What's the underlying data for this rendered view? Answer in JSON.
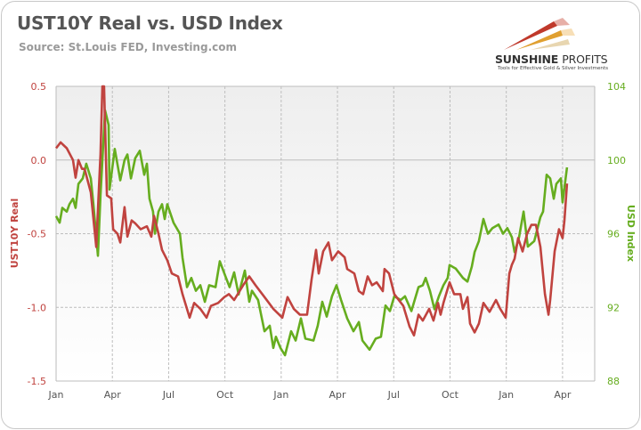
{
  "header": {
    "title": "UST10Y Real vs. USD Index",
    "source": "Source: St.Louis FED,  Investing.com"
  },
  "logo": {
    "brand_bold": "SUNSHINE",
    "brand_thin": "PROFITS",
    "tagline": "Tools for Effective Gold & Silver Investments"
  },
  "colors": {
    "real_yield": "#c0433f",
    "usd_index": "#66ad1f",
    "grid": "#bdbdbd",
    "left_axis_text": "#c0433f",
    "right_axis_text": "#66ad1f",
    "x_axis_text": "#555555"
  },
  "chart_data": {
    "type": "line",
    "title": "UST10Y Real vs. USD Index",
    "xlabel": "",
    "x_unit": "months since first January shown",
    "xlim": [
      0,
      28.5
    ],
    "x_ticks": [
      {
        "m": 0,
        "label": "Jan"
      },
      {
        "m": 3,
        "label": "Apr"
      },
      {
        "m": 6,
        "label": "Jul"
      },
      {
        "m": 9,
        "label": "Oct"
      },
      {
        "m": 12,
        "label": "Jan"
      },
      {
        "m": 15,
        "label": "Apr"
      },
      {
        "m": 18,
        "label": "Jul"
      },
      {
        "m": 21,
        "label": "Oct"
      },
      {
        "m": 24,
        "label": "Jan"
      },
      {
        "m": 27,
        "label": "Apr"
      }
    ],
    "y_left": {
      "label": "UST10Y Real",
      "lim": [
        -1.5,
        0.5
      ],
      "ticks": [
        "0.5",
        "0.0",
        "-0.5",
        "-1.0",
        "-1.5"
      ]
    },
    "y_right": {
      "label": "USD Index",
      "lim": [
        88,
        104
      ],
      "ticks": [
        "104",
        "100",
        "96",
        "92",
        "88"
      ]
    },
    "grid": true,
    "series": [
      {
        "name": "UST10Y Real",
        "axis": "left",
        "points": [
          [
            0,
            0.08
          ],
          [
            0.24,
            0.12
          ],
          [
            0.57,
            0.08
          ],
          [
            0.9,
            0.0
          ],
          [
            1.04,
            -0.12
          ],
          [
            1.19,
            0.0
          ],
          [
            1.38,
            -0.06
          ],
          [
            1.52,
            -0.06
          ],
          [
            1.85,
            -0.22
          ],
          [
            2.14,
            -0.59
          ],
          [
            2.33,
            -0.06
          ],
          [
            2.37,
            0.04
          ],
          [
            2.47,
            0.5
          ],
          [
            2.56,
            0.5
          ],
          [
            2.71,
            -0.24
          ],
          [
            2.94,
            -0.26
          ],
          [
            3.04,
            -0.47
          ],
          [
            3.27,
            -0.5
          ],
          [
            3.42,
            -0.56
          ],
          [
            3.65,
            -0.32
          ],
          [
            3.8,
            -0.52
          ],
          [
            4.03,
            -0.41
          ],
          [
            4.22,
            -0.43
          ],
          [
            4.51,
            -0.47
          ],
          [
            4.84,
            -0.45
          ],
          [
            5.08,
            -0.52
          ],
          [
            5.22,
            -0.38
          ],
          [
            5.46,
            -0.5
          ],
          [
            5.65,
            -0.61
          ],
          [
            5.93,
            -0.68
          ],
          [
            6.17,
            -0.77
          ],
          [
            6.5,
            -0.79
          ],
          [
            6.74,
            -0.91
          ],
          [
            7.12,
            -1.07
          ],
          [
            7.36,
            -0.97
          ],
          [
            7.69,
            -1.01
          ],
          [
            8.02,
            -1.07
          ],
          [
            8.26,
            -0.99
          ],
          [
            8.64,
            -0.97
          ],
          [
            8.97,
            -0.93
          ],
          [
            9.21,
            -0.91
          ],
          [
            9.49,
            -0.95
          ],
          [
            9.97,
            -0.85
          ],
          [
            10.3,
            -0.79
          ],
          [
            10.63,
            -0.85
          ],
          [
            11.11,
            -0.93
          ],
          [
            11.58,
            -1.01
          ],
          [
            12.06,
            -1.07
          ],
          [
            12.34,
            -0.93
          ],
          [
            12.67,
            -1.01
          ],
          [
            13.0,
            -1.05
          ],
          [
            13.38,
            -1.05
          ],
          [
            13.62,
            -0.81
          ],
          [
            13.86,
            -0.61
          ],
          [
            14.0,
            -0.77
          ],
          [
            14.24,
            -0.62
          ],
          [
            14.52,
            -0.56
          ],
          [
            14.71,
            -0.68
          ],
          [
            15.04,
            -0.62
          ],
          [
            15.38,
            -0.66
          ],
          [
            15.52,
            -0.74
          ],
          [
            15.9,
            -0.77
          ],
          [
            16.14,
            -0.89
          ],
          [
            16.37,
            -0.91
          ],
          [
            16.61,
            -0.79
          ],
          [
            16.85,
            -0.85
          ],
          [
            17.09,
            -0.83
          ],
          [
            17.42,
            -0.89
          ],
          [
            17.51,
            -0.74
          ],
          [
            17.75,
            -0.77
          ],
          [
            18.03,
            -0.91
          ],
          [
            18.51,
            -0.99
          ],
          [
            18.84,
            -1.13
          ],
          [
            19.08,
            -1.19
          ],
          [
            19.32,
            -1.05
          ],
          [
            19.55,
            -1.09
          ],
          [
            19.89,
            -1.01
          ],
          [
            20.12,
            -1.09
          ],
          [
            20.36,
            -0.97
          ],
          [
            20.5,
            -1.05
          ],
          [
            20.65,
            -0.97
          ],
          [
            20.98,
            -0.83
          ],
          [
            21.22,
            -0.91
          ],
          [
            21.55,
            -0.91
          ],
          [
            21.69,
            -1.01
          ],
          [
            21.93,
            -0.93
          ],
          [
            22.07,
            -1.11
          ],
          [
            22.31,
            -1.17
          ],
          [
            22.54,
            -1.11
          ],
          [
            22.78,
            -0.97
          ],
          [
            23.11,
            -1.03
          ],
          [
            23.45,
            -0.95
          ],
          [
            23.68,
            -1.01
          ],
          [
            23.97,
            -1.07
          ],
          [
            24.16,
            -0.77
          ],
          [
            24.3,
            -0.71
          ],
          [
            24.44,
            -0.67
          ],
          [
            24.63,
            -0.53
          ],
          [
            24.87,
            -0.62
          ],
          [
            25.11,
            -0.5
          ],
          [
            25.34,
            -0.44
          ],
          [
            25.58,
            -0.44
          ],
          [
            25.82,
            -0.59
          ],
          [
            26.06,
            -0.91
          ],
          [
            26.25,
            -1.05
          ],
          [
            26.34,
            -0.95
          ],
          [
            26.58,
            -0.62
          ],
          [
            26.81,
            -0.47
          ],
          [
            27.0,
            -0.53
          ],
          [
            27.1,
            -0.41
          ],
          [
            27.24,
            -0.16
          ]
        ]
      },
      {
        "name": "USD Index",
        "axis": "right",
        "points": [
          [
            0,
            96.95
          ],
          [
            0.19,
            96.6
          ],
          [
            0.33,
            97.4
          ],
          [
            0.57,
            97.2
          ],
          [
            0.71,
            97.6
          ],
          [
            0.9,
            97.9
          ],
          [
            1.04,
            97.4
          ],
          [
            1.19,
            98.7
          ],
          [
            1.42,
            99.0
          ],
          [
            1.61,
            99.8
          ],
          [
            1.85,
            99.0
          ],
          [
            1.99,
            97.6
          ],
          [
            2.23,
            94.8
          ],
          [
            2.37,
            98.1
          ],
          [
            2.61,
            102.7
          ],
          [
            2.8,
            101.9
          ],
          [
            2.85,
            98.4
          ],
          [
            3.13,
            100.6
          ],
          [
            3.42,
            98.9
          ],
          [
            3.65,
            100.0
          ],
          [
            3.8,
            100.3
          ],
          [
            3.99,
            99.0
          ],
          [
            4.22,
            100.1
          ],
          [
            4.46,
            100.5
          ],
          [
            4.7,
            99.2
          ],
          [
            4.84,
            99.8
          ],
          [
            4.98,
            97.9
          ],
          [
            5.17,
            97.2
          ],
          [
            5.27,
            96.0
          ],
          [
            5.46,
            97.2
          ],
          [
            5.65,
            97.6
          ],
          [
            5.79,
            96.8
          ],
          [
            5.93,
            97.6
          ],
          [
            6.26,
            96.6
          ],
          [
            6.6,
            96.0
          ],
          [
            6.74,
            94.7
          ],
          [
            6.98,
            93.1
          ],
          [
            7.21,
            93.6
          ],
          [
            7.45,
            92.9
          ],
          [
            7.69,
            93.2
          ],
          [
            7.93,
            92.3
          ],
          [
            8.16,
            93.2
          ],
          [
            8.5,
            93.1
          ],
          [
            8.73,
            94.5
          ],
          [
            9.02,
            93.7
          ],
          [
            9.25,
            93.1
          ],
          [
            9.49,
            93.9
          ],
          [
            9.73,
            92.7
          ],
          [
            10.06,
            94.0
          ],
          [
            10.3,
            92.3
          ],
          [
            10.44,
            92.9
          ],
          [
            10.77,
            92.4
          ],
          [
            11.11,
            90.7
          ],
          [
            11.39,
            91.0
          ],
          [
            11.58,
            89.8
          ],
          [
            11.72,
            90.4
          ],
          [
            11.96,
            89.8
          ],
          [
            12.2,
            89.4
          ],
          [
            12.53,
            90.7
          ],
          [
            12.77,
            90.2
          ],
          [
            13.05,
            91.4
          ],
          [
            13.29,
            90.3
          ],
          [
            13.72,
            90.2
          ],
          [
            13.95,
            91.0
          ],
          [
            14.19,
            92.3
          ],
          [
            14.43,
            91.5
          ],
          [
            14.71,
            92.6
          ],
          [
            14.95,
            93.2
          ],
          [
            15.19,
            92.4
          ],
          [
            15.52,
            91.4
          ],
          [
            15.85,
            90.7
          ],
          [
            16.14,
            91.2
          ],
          [
            16.33,
            90.2
          ],
          [
            16.71,
            89.7
          ],
          [
            17.04,
            90.3
          ],
          [
            17.32,
            90.4
          ],
          [
            17.56,
            92.1
          ],
          [
            17.8,
            91.8
          ],
          [
            18.03,
            92.6
          ],
          [
            18.37,
            92.4
          ],
          [
            18.6,
            92.6
          ],
          [
            18.94,
            91.8
          ],
          [
            19.32,
            93.1
          ],
          [
            19.55,
            93.2
          ],
          [
            19.7,
            93.6
          ],
          [
            19.93,
            92.9
          ],
          [
            20.17,
            91.9
          ],
          [
            20.41,
            92.6
          ],
          [
            20.65,
            93.2
          ],
          [
            20.88,
            93.6
          ],
          [
            20.98,
            94.3
          ],
          [
            21.31,
            94.1
          ],
          [
            21.69,
            93.6
          ],
          [
            21.93,
            93.4
          ],
          [
            22.16,
            94.2
          ],
          [
            22.31,
            95.0
          ],
          [
            22.54,
            95.6
          ],
          [
            22.78,
            96.8
          ],
          [
            23.02,
            96.0
          ],
          [
            23.26,
            96.3
          ],
          [
            23.59,
            96.5
          ],
          [
            23.83,
            96.0
          ],
          [
            24.06,
            96.3
          ],
          [
            24.3,
            95.8
          ],
          [
            24.44,
            95.0
          ],
          [
            24.68,
            95.8
          ],
          [
            24.92,
            97.2
          ],
          [
            25.15,
            95.3
          ],
          [
            25.49,
            95.6
          ],
          [
            25.82,
            96.9
          ],
          [
            25.96,
            97.2
          ],
          [
            26.15,
            99.2
          ],
          [
            26.34,
            99.0
          ],
          [
            26.53,
            97.9
          ],
          [
            26.67,
            98.7
          ],
          [
            26.91,
            99.0
          ],
          [
            27.0,
            97.7
          ],
          [
            27.24,
            99.6
          ]
        ]
      }
    ]
  }
}
